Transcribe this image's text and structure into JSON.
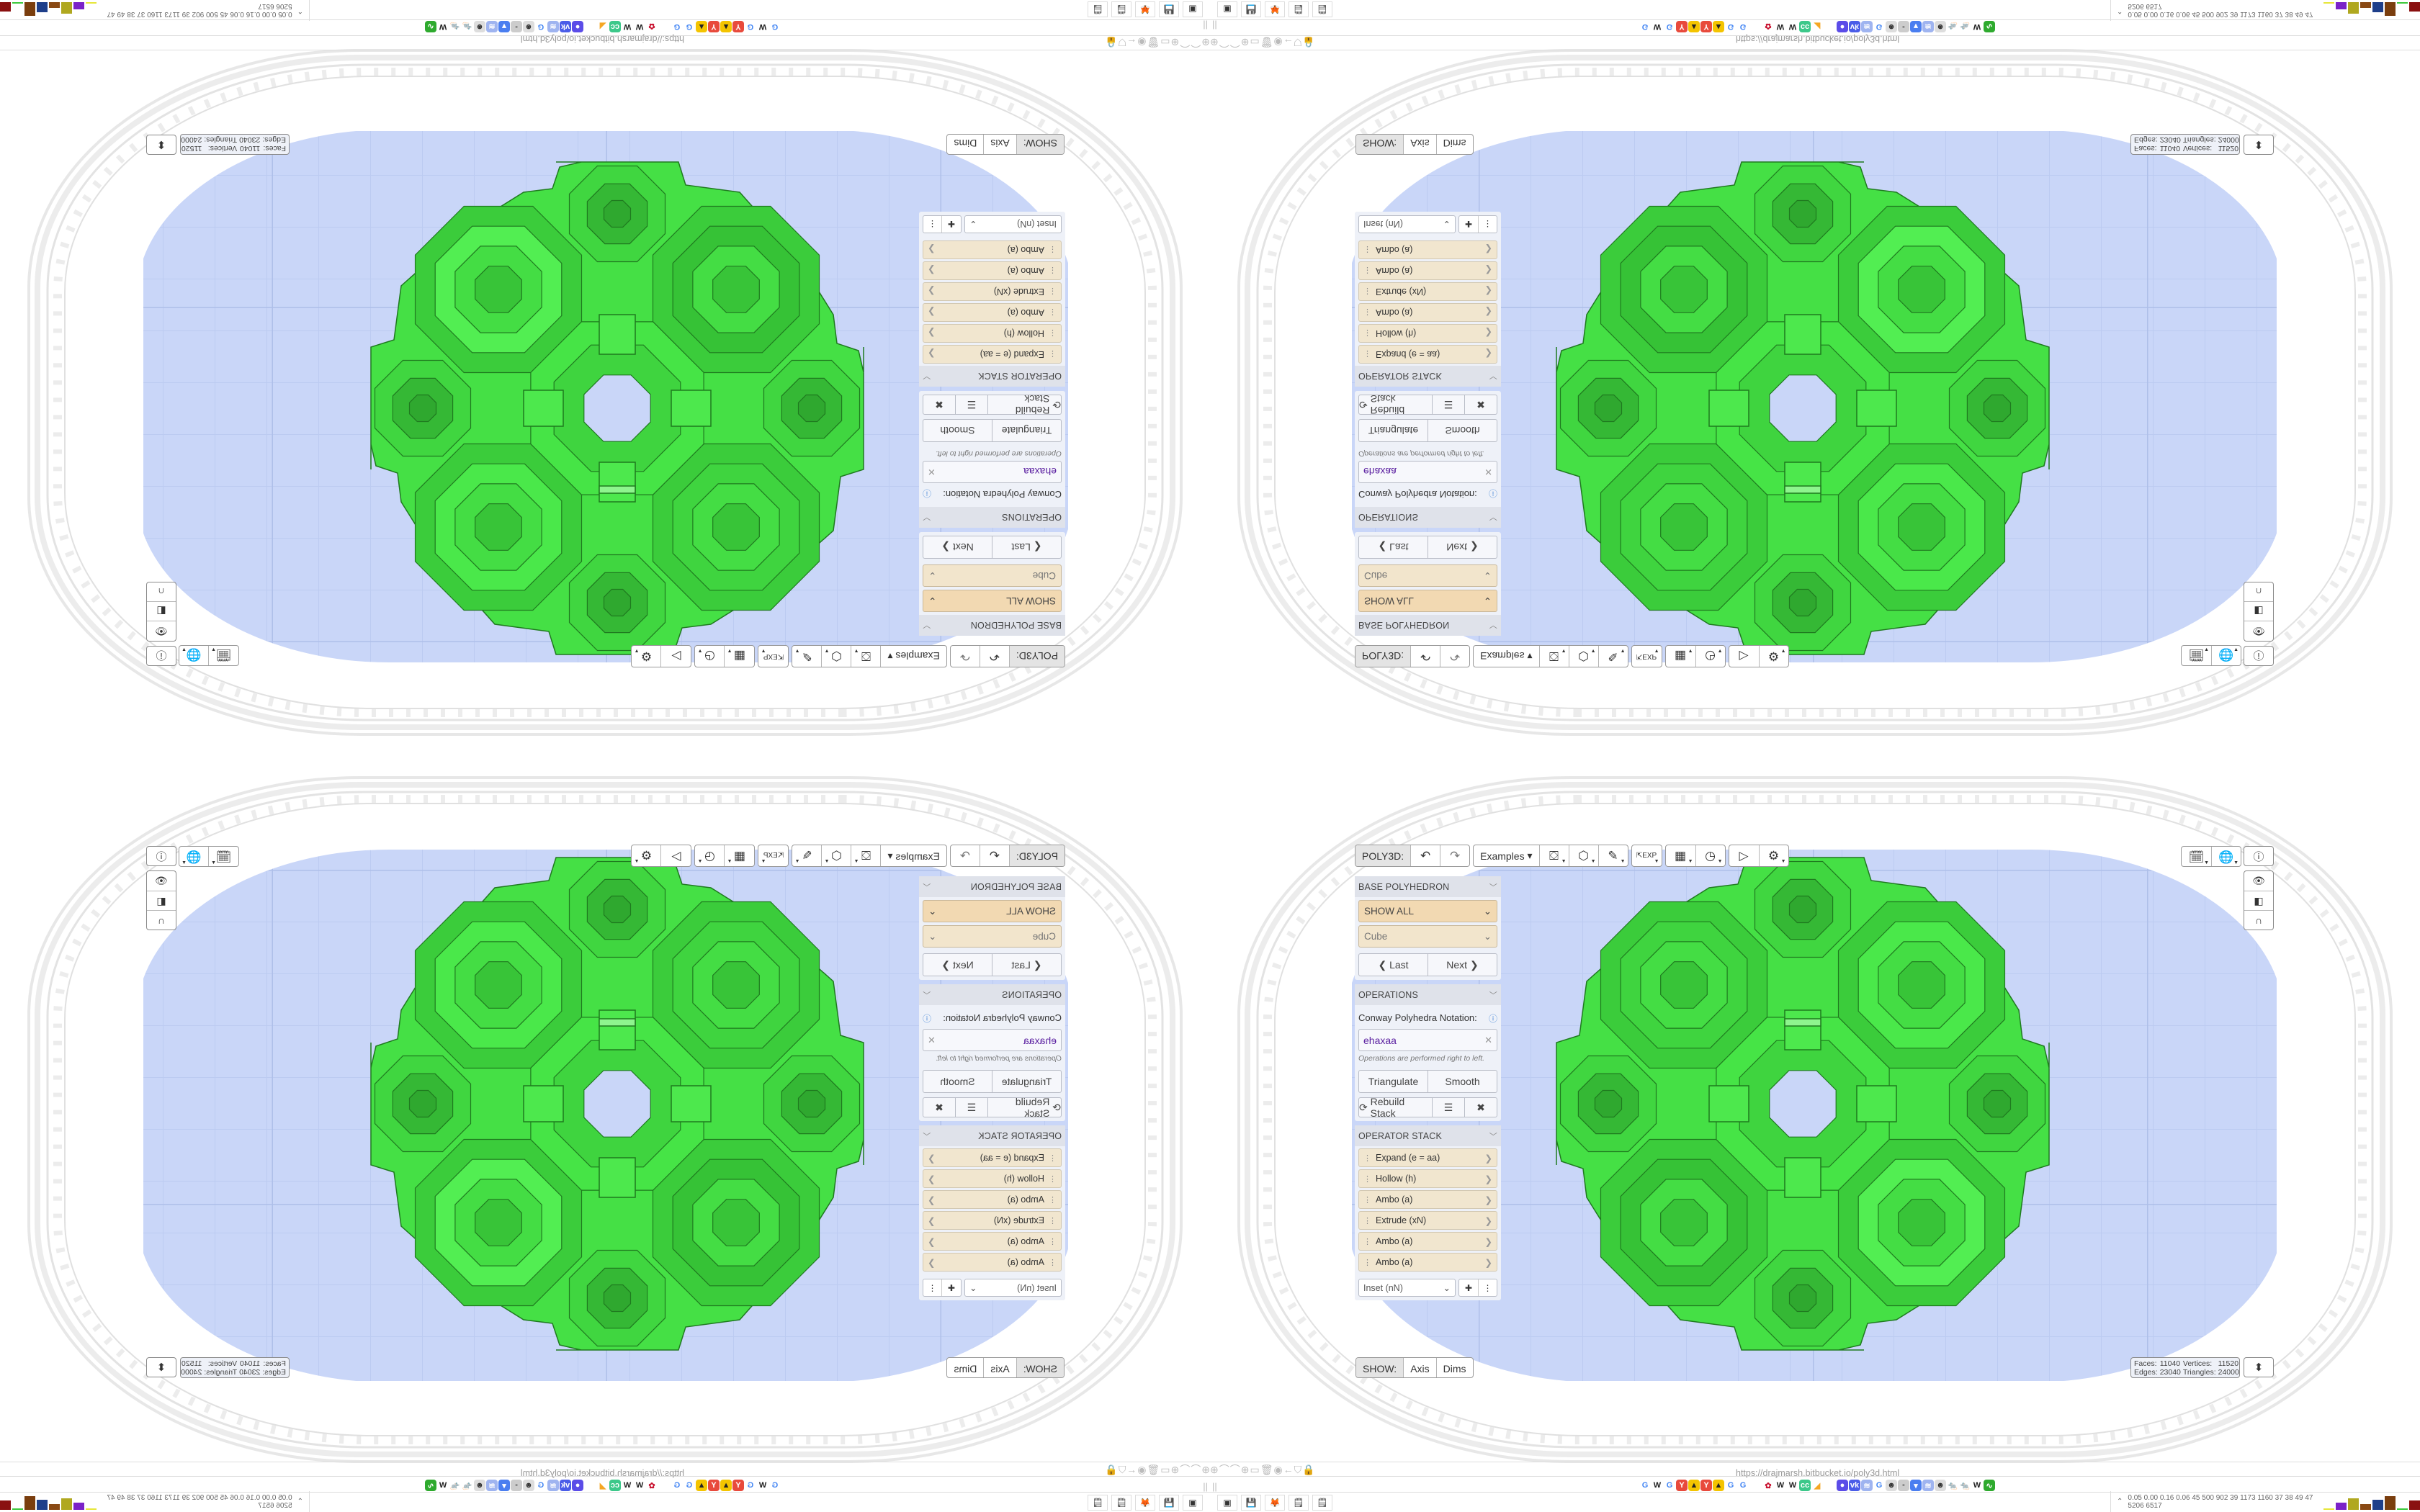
{
  "toolbar": {
    "brand": "POLY3D:",
    "undo_icon": "undo-icon",
    "redo_icon": "redo-icon",
    "examples": "Examples",
    "tools": [
      "paint-bucket-icon",
      "cube-play-icon",
      "edit-pen-icon",
      "export-icon",
      "calendar-icon",
      "clock-icon",
      "play-icon",
      "settings-gear-icon"
    ]
  },
  "panel": {
    "base": {
      "header": "BASE POLYHEDRON",
      "filter": "SHOW ALL",
      "shape": "Cube",
      "last": "Last",
      "next": "Next"
    },
    "operations": {
      "header": "OPERATIONS",
      "label": "Conway Polyhedra Notation:",
      "notation": "ehaxaa",
      "note": "Operations are performed right to left.",
      "triangulate": "Triangulate",
      "smooth": "Smooth",
      "rebuild": "Rebuild Stack"
    },
    "stack": {
      "header": "OPERATOR STACK",
      "items": [
        "Expand (e = aa)",
        "Hollow (h)",
        "Ambo (a)",
        "Extrude (xN)",
        "Ambo (a)",
        "Ambo (a)"
      ],
      "add_select": "Inset (nN)"
    }
  },
  "viewport": {
    "show_label": "SHOW:",
    "axis": "Axis",
    "dims": "Dims",
    "stats": {
      "faces_label": "Faces:",
      "faces": "11040",
      "vertices_label": "Vertices:",
      "vertices": "11520",
      "edges_label": "Edges:",
      "edges": "23040",
      "triangles_label": "Triangles:",
      "triangles": "24000"
    },
    "right_tools": [
      "calendar-clock-icon",
      "globe-icon",
      "info-icon"
    ],
    "view_tools": [
      "eye-icon",
      "toggle-icon",
      "magnet-icon"
    ]
  },
  "browser": {
    "url": "https://drajmarsh.bitbucket.io/poly3d.html",
    "bookmarks": [
      "google",
      "wikipedia",
      "google",
      "yandex",
      "yandex-maps",
      "yandex",
      "yandex-maps",
      "google",
      "google",
      "flower",
      "wikipedia",
      "wikipedia",
      "cc",
      "cake",
      "chat",
      "vk",
      "hubs",
      "google",
      "avatar",
      "grey",
      "pocket",
      "hubs",
      "avatar",
      "rat",
      "rat",
      "wikipedia",
      "desmos"
    ],
    "taskbar": [
      "tower-icon",
      "floppy-icon",
      "firefox-icon",
      "notepad-icon",
      "notepad-icon"
    ],
    "perf": "0.05 0.00 0.16 0.06 45 500 902 39 1173 1160 37 38 49 47 5206 6517"
  },
  "colors": {
    "viewport": "#c9d6f8",
    "polyhedron": "#45e045",
    "edge": "#1f7a1f",
    "select": "#f2d9b2",
    "stack_item": "#f1e6cf",
    "notation": "#5a1fa0"
  }
}
